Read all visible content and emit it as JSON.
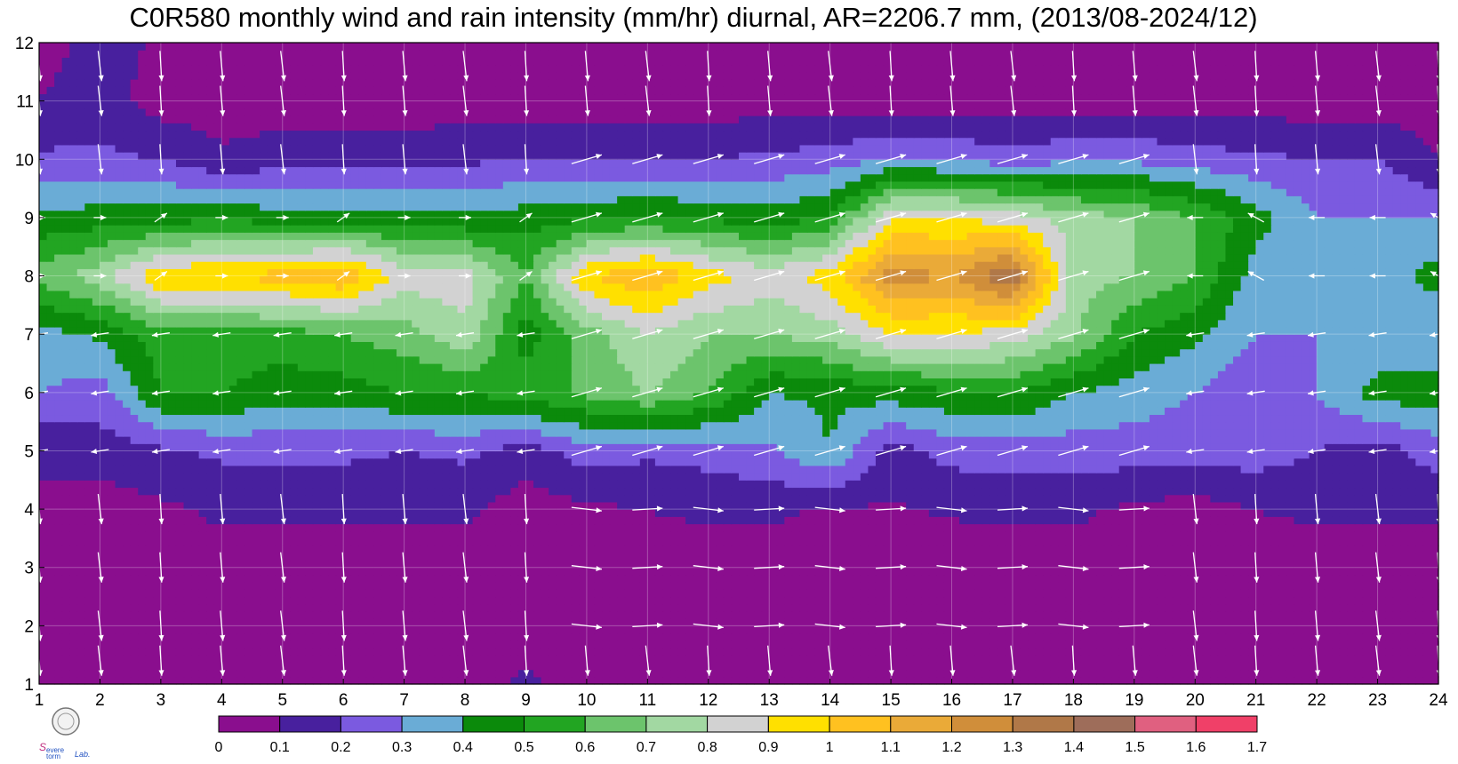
{
  "chart_data": {
    "type": "heatmap",
    "title": "C0R580 monthly wind and rain intensity (mm/hr) diurnal, AR=2206.7 mm, (2013/08-2024/12)",
    "x_ticks": [
      "1",
      "2",
      "3",
      "4",
      "5",
      "6",
      "7",
      "8",
      "9",
      "10",
      "11",
      "12",
      "13",
      "14",
      "15",
      "16",
      "17",
      "18",
      "19",
      "20",
      "21",
      "22",
      "23",
      "24"
    ],
    "y_ticks": [
      "1",
      "2",
      "3",
      "4",
      "5",
      "6",
      "7",
      "8",
      "9",
      "10",
      "11",
      "12"
    ],
    "xlim": [
      1,
      24
    ],
    "ylim": [
      1,
      12
    ],
    "grid": true,
    "levels": [
      0,
      0.1,
      0.2,
      0.3,
      0.4,
      0.5,
      0.6,
      0.7,
      0.8,
      0.9,
      1,
      1.1,
      1.2,
      1.3,
      1.4,
      1.5,
      1.6,
      1.7
    ],
    "level_labels": [
      "0",
      "0.1",
      "0.2",
      "0.3",
      "0.4",
      "0.5",
      "0.6",
      "0.7",
      "0.8",
      "0.9",
      "1",
      "1.1",
      "1.2",
      "1.3",
      "1.4",
      "1.5",
      "1.6",
      "1.7"
    ],
    "colors": [
      "#8a0e8e",
      "#48209e",
      "#7b5ae0",
      "#6aacd6",
      "#0b8a0b",
      "#22a522",
      "#6cc46c",
      "#a2d8a2",
      "#d2d2d2",
      "#ffe000",
      "#ffc120",
      "#eaaa38",
      "#d08e3a",
      "#b07848",
      "#9e6d5a",
      "#e06080",
      "#f04068",
      "#d83050"
    ],
    "rain_grid": [
      [
        0.05,
        0.05,
        0.05,
        0.05,
        0.05,
        0.05,
        0.05,
        0.05,
        0.12,
        0.05,
        0.05,
        0.05,
        0.05,
        0.05,
        0.05,
        0.05,
        0.05,
        0.05,
        0.05,
        0.05,
        0.05,
        0.05,
        0.05,
        0.05
      ],
      [
        0.05,
        0.05,
        0.05,
        0.05,
        0.05,
        0.05,
        0.05,
        0.05,
        0.05,
        0.05,
        0.05,
        0.05,
        0.05,
        0.05,
        0.05,
        0.05,
        0.05,
        0.05,
        0.05,
        0.05,
        0.05,
        0.05,
        0.05,
        0.05
      ],
      [
        0.05,
        0.05,
        0.05,
        0.05,
        0.05,
        0.05,
        0.05,
        0.05,
        0.05,
        0.05,
        0.05,
        0.05,
        0.05,
        0.05,
        0.05,
        0.05,
        0.05,
        0.05,
        0.05,
        0.05,
        0.05,
        0.05,
        0.05,
        0.05
      ],
      [
        0.08,
        0.05,
        0.08,
        0.12,
        0.12,
        0.12,
        0.12,
        0.12,
        0.05,
        0.08,
        0.1,
        0.12,
        0.12,
        0.09,
        0.09,
        0.11,
        0.12,
        0.12,
        0.08,
        0.05,
        0.1,
        0.12,
        0.12,
        0.12
      ],
      [
        0.12,
        0.15,
        0.18,
        0.22,
        0.22,
        0.22,
        0.2,
        0.22,
        0.15,
        0.25,
        0.22,
        0.24,
        0.28,
        0.4,
        0.15,
        0.24,
        0.25,
        0.25,
        0.25,
        0.25,
        0.25,
        0.2,
        0.15,
        0.25
      ],
      [
        0.3,
        0.25,
        0.5,
        0.5,
        0.45,
        0.45,
        0.5,
        0.5,
        0.55,
        0.62,
        0.7,
        0.6,
        0.4,
        0.42,
        0.45,
        0.48,
        0.5,
        0.4,
        0.35,
        0.3,
        0.2,
        0.3,
        0.45,
        0.45
      ],
      [
        0.35,
        0.42,
        0.55,
        0.55,
        0.55,
        0.6,
        0.65,
        0.78,
        0.45,
        0.65,
        0.8,
        0.7,
        0.7,
        0.75,
        0.9,
        0.9,
        0.85,
        0.72,
        0.5,
        0.42,
        0.3,
        0.3,
        0.3,
        0.3
      ],
      [
        0.65,
        0.75,
        1.0,
        1.0,
        1.05,
        1.1,
        0.85,
        0.85,
        0.6,
        1.0,
        1.1,
        0.95,
        0.85,
        0.95,
        1.25,
        1.2,
        1.4,
        0.75,
        0.7,
        0.6,
        0.35,
        0.3,
        0.35,
        0.45
      ],
      [
        0.42,
        0.45,
        0.45,
        0.48,
        0.45,
        0.45,
        0.45,
        0.42,
        0.45,
        0.48,
        0.5,
        0.48,
        0.45,
        0.5,
        0.9,
        0.9,
        0.85,
        0.75,
        0.7,
        0.6,
        0.45,
        0.3,
        0.3,
        0.3
      ],
      [
        0.22,
        0.22,
        0.2,
        0.12,
        0.15,
        0.15,
        0.15,
        0.18,
        0.2,
        0.2,
        0.2,
        0.2,
        0.22,
        0.25,
        0.3,
        0.28,
        0.25,
        0.28,
        0.28,
        0.25,
        0.22,
        0.2,
        0.2,
        0.1
      ],
      [
        0.1,
        0.15,
        0.05,
        0.05,
        0.05,
        0.05,
        0.05,
        0.05,
        0.05,
        0.05,
        0.05,
        0.05,
        0.05,
        0.05,
        0.05,
        0.05,
        0.05,
        0.05,
        0.05,
        0.05,
        0.05,
        0.05,
        0.05,
        0.05
      ],
      [
        0.05,
        0.15,
        0.08,
        0.05,
        0.05,
        0.05,
        0.05,
        0.05,
        0.05,
        0.05,
        0.05,
        0.05,
        0.05,
        0.05,
        0.05,
        0.05,
        0.05,
        0.05,
        0.05,
        0.05,
        0.05,
        0.05,
        0.05,
        0.05
      ]
    ],
    "wind_arrows": "white vectors at each hour (x) and month (y)",
    "colorbar_label": "",
    "logo_text": "Severe Storm Lab."
  }
}
